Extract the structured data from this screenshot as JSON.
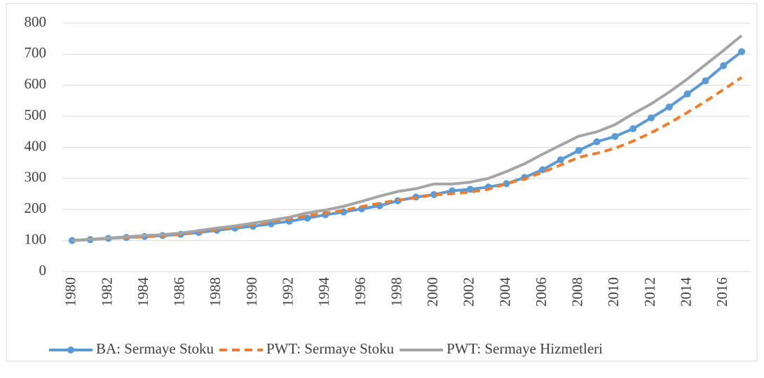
{
  "chart_data": {
    "type": "line",
    "categories": [
      "1980",
      null,
      "1982",
      null,
      "1984",
      null,
      "1986",
      null,
      "1988",
      null,
      "1990",
      null,
      "1992",
      null,
      "1994",
      null,
      "1996",
      null,
      "1998",
      null,
      "2000",
      null,
      "2002",
      null,
      "2004",
      null,
      "2006",
      null,
      "2008",
      null,
      "2010",
      null,
      "2012",
      null,
      "2014",
      null,
      "2016",
      null
    ],
    "series": [
      {
        "name": "BA: Sermaye Stoku",
        "color": "#5b9bd5",
        "style": "solid-markers",
        "values": [
          100,
          103,
          107,
          110,
          113,
          116,
          120,
          126,
          133,
          140,
          146,
          154,
          162,
          172,
          183,
          192,
          202,
          212,
          228,
          240,
          248,
          260,
          265,
          272,
          283,
          303,
          328,
          360,
          390,
          418,
          435,
          460,
          495,
          530,
          572,
          614,
          663,
          708
        ]
      },
      {
        "name": "PWT: Sermaye Stoku",
        "color": "#ed7d31",
        "style": "dashed",
        "values": [
          100,
          104,
          107,
          109,
          112,
          115,
          120,
          128,
          135,
          143,
          151,
          160,
          170,
          180,
          188,
          197,
          209,
          220,
          230,
          238,
          247,
          251,
          256,
          265,
          283,
          298,
          320,
          343,
          368,
          381,
          397,
          420,
          447,
          478,
          512,
          548,
          586,
          625
        ]
      },
      {
        "name": "PWT: Sermaye Hizmetleri",
        "color": "#a5a5a5",
        "style": "solid",
        "values": [
          100,
          104,
          108,
          112,
          116,
          119,
          124,
          132,
          140,
          147,
          156,
          165,
          175,
          189,
          198,
          210,
          226,
          243,
          258,
          267,
          282,
          282,
          288,
          300,
          322,
          347,
          378,
          407,
          436,
          450,
          473,
          508,
          540,
          578,
          620,
          666,
          712,
          760
        ]
      }
    ],
    "ylim": [
      0,
      800
    ],
    "yticks": [
      0,
      100,
      200,
      300,
      400,
      500,
      600,
      700,
      800
    ],
    "grid": true,
    "legend": "bottom"
  }
}
